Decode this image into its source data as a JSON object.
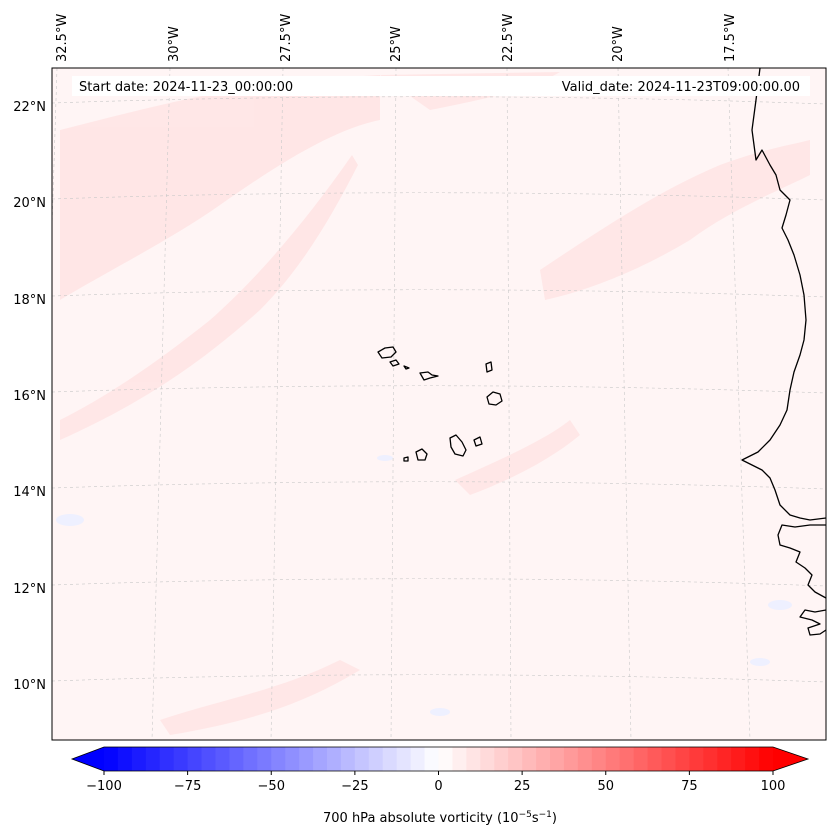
{
  "map": {
    "start_label": "Start date: 2024-11-23_00:00:00",
    "valid_label": "Valid_date: 2024-11-23T09:00:00.00",
    "lon_labels": [
      "32.5°W",
      "30°W",
      "27.5°W",
      "25°W",
      "22.5°W",
      "20°W",
      "17.5°W"
    ],
    "lat_labels": [
      "22°N",
      "20°N",
      "18°N",
      "16°N",
      "14°N",
      "12°N",
      "10°N"
    ],
    "background_color": "#fff5f5",
    "land_outline_color": "#000000"
  },
  "colorbar": {
    "ticks": [
      -100,
      -75,
      -50,
      -25,
      0,
      25,
      50,
      75,
      100
    ],
    "tick_labels": [
      "−100",
      "−75",
      "−50",
      "−25",
      "0",
      "25",
      "50",
      "75",
      "100"
    ],
    "label_main": "700 hPa absolute vorticity (10",
    "label_exp1": "−5",
    "label_mid": "s",
    "label_exp2": "−1",
    "label_end": ")",
    "min_color": "#0000ff",
    "mid_color": "#ffffff",
    "max_color": "#ff0000",
    "levels": 48
  }
}
